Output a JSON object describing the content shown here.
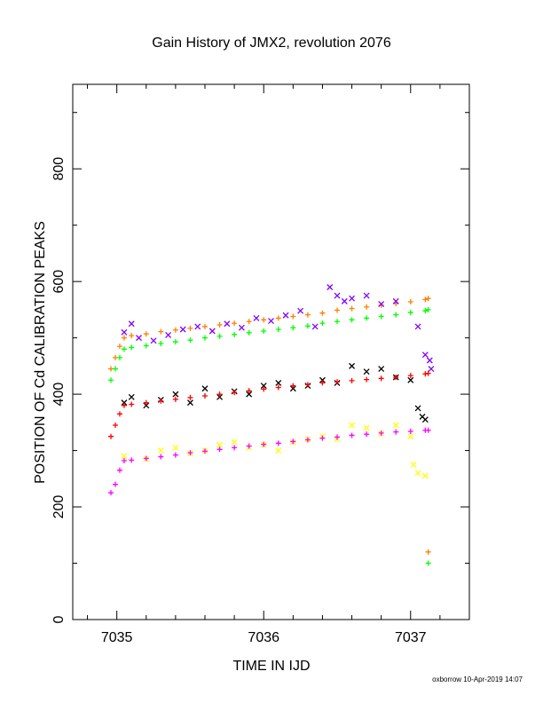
{
  "chart_data": {
    "type": "scatter",
    "title": "Gain History of JMX2, revolution 2076",
    "xlabel": "TIME IN IJD",
    "ylabel": "POSITION OF Cd CALIBRATION PEAKS",
    "footer": "oxborrow 10-Apr-2019 14:07",
    "xlim": [
      7034.7,
      7037.4
    ],
    "ylim": [
      0,
      950
    ],
    "x_ticks": [
      7035,
      7036,
      7037
    ],
    "x_tick_labels": [
      "7035",
      "7036",
      "7037"
    ],
    "y_ticks": [
      0,
      200,
      400,
      600,
      800
    ],
    "y_tick_labels": [
      "0",
      "200",
      "400",
      "600",
      "800"
    ],
    "grid": false,
    "series": [
      {
        "marker": "plus",
        "color": "#ff8000",
        "points": [
          [
            7034.96,
            445
          ],
          [
            7034.99,
            465
          ],
          [
            7035.02,
            485
          ],
          [
            7035.05,
            500
          ],
          [
            7035.1,
            504
          ],
          [
            7035.2,
            507
          ],
          [
            7035.3,
            511
          ],
          [
            7035.4,
            514
          ],
          [
            7035.5,
            517
          ],
          [
            7035.6,
            520
          ],
          [
            7035.7,
            523
          ],
          [
            7035.8,
            526
          ],
          [
            7035.9,
            529
          ],
          [
            7036.0,
            532
          ],
          [
            7036.1,
            535
          ],
          [
            7036.2,
            538
          ],
          [
            7036.3,
            541
          ],
          [
            7036.4,
            544
          ],
          [
            7036.5,
            549
          ],
          [
            7036.6,
            552
          ],
          [
            7036.7,
            555
          ],
          [
            7036.8,
            558
          ],
          [
            7036.9,
            561
          ],
          [
            7037.0,
            564
          ],
          [
            7037.1,
            568
          ],
          [
            7037.12,
            570
          ],
          [
            7037.12,
            120
          ]
        ]
      },
      {
        "marker": "plus",
        "color": "#00ff00",
        "points": [
          [
            7034.96,
            425
          ],
          [
            7034.99,
            445
          ],
          [
            7035.02,
            465
          ],
          [
            7035.05,
            480
          ],
          [
            7035.1,
            483
          ],
          [
            7035.2,
            486
          ],
          [
            7035.3,
            490
          ],
          [
            7035.4,
            493
          ],
          [
            7035.5,
            496
          ],
          [
            7035.6,
            500
          ],
          [
            7035.7,
            503
          ],
          [
            7035.8,
            506
          ],
          [
            7035.9,
            509
          ],
          [
            7036.0,
            512
          ],
          [
            7036.1,
            515
          ],
          [
            7036.2,
            518
          ],
          [
            7036.3,
            521
          ],
          [
            7036.4,
            526
          ],
          [
            7036.5,
            529
          ],
          [
            7036.6,
            532
          ],
          [
            7036.7,
            535
          ],
          [
            7036.8,
            538
          ],
          [
            7036.9,
            541
          ],
          [
            7037.0,
            545
          ],
          [
            7037.1,
            548
          ],
          [
            7037.12,
            550
          ],
          [
            7037.12,
            100
          ]
        ]
      },
      {
        "marker": "cross",
        "color": "#8000ff",
        "points": [
          [
            7035.05,
            510
          ],
          [
            7035.1,
            525
          ],
          [
            7035.15,
            500
          ],
          [
            7035.25,
            495
          ],
          [
            7035.35,
            505
          ],
          [
            7035.45,
            515
          ],
          [
            7035.55,
            520
          ],
          [
            7035.65,
            512
          ],
          [
            7035.75,
            525
          ],
          [
            7035.85,
            518
          ],
          [
            7035.95,
            535
          ],
          [
            7036.05,
            530
          ],
          [
            7036.15,
            540
          ],
          [
            7036.25,
            548
          ],
          [
            7036.35,
            520
          ],
          [
            7036.45,
            590
          ],
          [
            7036.5,
            575
          ],
          [
            7036.55,
            565
          ],
          [
            7036.6,
            570
          ],
          [
            7036.7,
            575
          ],
          [
            7036.8,
            560
          ],
          [
            7036.9,
            565
          ],
          [
            7037.05,
            520
          ],
          [
            7037.1,
            470
          ],
          [
            7037.13,
            460
          ],
          [
            7037.14,
            445
          ]
        ]
      },
      {
        "marker": "cross",
        "color": "#000000",
        "points": [
          [
            7035.05,
            385
          ],
          [
            7035.1,
            395
          ],
          [
            7035.2,
            380
          ],
          [
            7035.3,
            390
          ],
          [
            7035.4,
            400
          ],
          [
            7035.5,
            385
          ],
          [
            7035.6,
            410
          ],
          [
            7035.7,
            395
          ],
          [
            7035.8,
            405
          ],
          [
            7035.9,
            400
          ],
          [
            7036.0,
            415
          ],
          [
            7036.1,
            420
          ],
          [
            7036.2,
            410
          ],
          [
            7036.3,
            415
          ],
          [
            7036.4,
            425
          ],
          [
            7036.5,
            420
          ],
          [
            7036.6,
            450
          ],
          [
            7036.7,
            440
          ],
          [
            7036.8,
            445
          ],
          [
            7036.9,
            430
          ],
          [
            7037.0,
            425
          ],
          [
            7037.05,
            375
          ],
          [
            7037.08,
            360
          ],
          [
            7037.1,
            355
          ]
        ]
      },
      {
        "marker": "plus",
        "color": "#ff0000",
        "points": [
          [
            7034.96,
            325
          ],
          [
            7034.99,
            345
          ],
          [
            7035.02,
            365
          ],
          [
            7035.05,
            380
          ],
          [
            7035.1,
            382
          ],
          [
            7035.2,
            385
          ],
          [
            7035.3,
            388
          ],
          [
            7035.4,
            391
          ],
          [
            7035.5,
            394
          ],
          [
            7035.6,
            397
          ],
          [
            7035.7,
            400
          ],
          [
            7035.8,
            403
          ],
          [
            7035.9,
            406
          ],
          [
            7036.0,
            409
          ],
          [
            7036.1,
            412
          ],
          [
            7036.2,
            415
          ],
          [
            7036.3,
            417
          ],
          [
            7036.4,
            420
          ],
          [
            7036.5,
            422
          ],
          [
            7036.6,
            424
          ],
          [
            7036.7,
            426
          ],
          [
            7036.8,
            428
          ],
          [
            7036.9,
            430
          ],
          [
            7037.0,
            433
          ],
          [
            7037.1,
            436
          ],
          [
            7037.12,
            437
          ]
        ]
      },
      {
        "marker": "cross",
        "color": "#ffff00",
        "points": [
          [
            7035.05,
            290
          ],
          [
            7035.2,
            285
          ],
          [
            7035.3,
            300
          ],
          [
            7035.4,
            305
          ],
          [
            7035.5,
            295
          ],
          [
            7035.6,
            300
          ],
          [
            7035.7,
            310
          ],
          [
            7035.8,
            315
          ],
          [
            7035.9,
            305
          ],
          [
            7036.0,
            310
          ],
          [
            7036.1,
            300
          ],
          [
            7036.2,
            315
          ],
          [
            7036.3,
            320
          ],
          [
            7036.4,
            325
          ],
          [
            7036.5,
            320
          ],
          [
            7036.6,
            345
          ],
          [
            7036.7,
            340
          ],
          [
            7036.8,
            330
          ],
          [
            7036.9,
            345
          ],
          [
            7037.0,
            325
          ],
          [
            7037.02,
            275
          ],
          [
            7037.05,
            260
          ],
          [
            7037.1,
            255
          ]
        ]
      },
      {
        "marker": "plus",
        "color": "#ff00ff",
        "points": [
          [
            7034.96,
            225
          ],
          [
            7034.99,
            240
          ],
          [
            7035.02,
            265
          ],
          [
            7035.05,
            282
          ],
          [
            7035.1,
            283
          ],
          [
            7035.2,
            286
          ],
          [
            7035.3,
            289
          ],
          [
            7035.4,
            292
          ],
          [
            7035.5,
            296
          ],
          [
            7035.6,
            299
          ],
          [
            7035.7,
            302
          ],
          [
            7035.8,
            305
          ],
          [
            7035.9,
            308
          ],
          [
            7036.0,
            311
          ],
          [
            7036.1,
            313
          ],
          [
            7036.2,
            316
          ],
          [
            7036.3,
            319
          ],
          [
            7036.4,
            322
          ],
          [
            7036.5,
            324
          ],
          [
            7036.6,
            327
          ],
          [
            7036.7,
            329
          ],
          [
            7036.8,
            331
          ],
          [
            7036.9,
            333
          ],
          [
            7037.0,
            334
          ],
          [
            7037.1,
            336
          ],
          [
            7037.12,
            336
          ]
        ]
      }
    ]
  }
}
